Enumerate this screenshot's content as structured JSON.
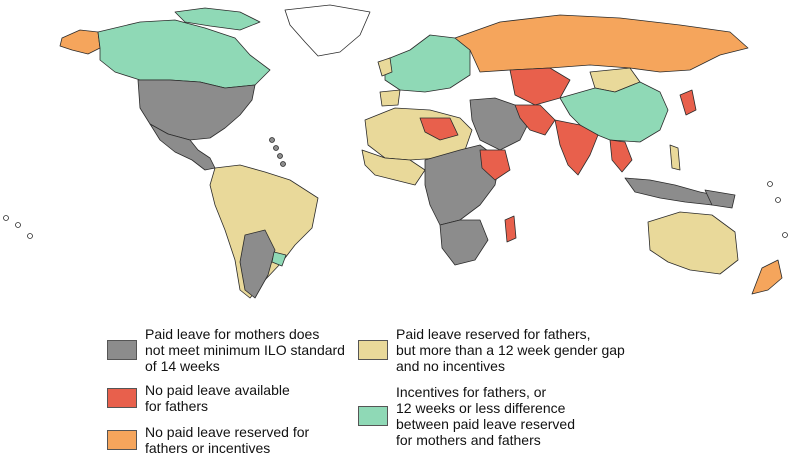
{
  "colors": {
    "gray": "#8c8c8c",
    "red": "#e8604c",
    "orange": "#f5a55c",
    "beige": "#e9d99a",
    "teal": "#8fd9b6",
    "white": "#ffffff",
    "border": "#2b2b2b"
  },
  "legend": [
    {
      "key": "gray",
      "lines": [
        "Paid leave for mothers does",
        "not meet minimum ILO standard",
        "of 14 weeks"
      ]
    },
    {
      "key": "red",
      "lines": [
        "No paid leave available",
        "for fathers"
      ]
    },
    {
      "key": "orange",
      "lines": [
        "No paid leave reserved for",
        "fathers or incentives"
      ]
    },
    {
      "key": "beige",
      "lines": [
        "Paid leave reserved for fathers,",
        "but more than a 12 week gender gap",
        "and no incentives"
      ]
    },
    {
      "key": "teal",
      "lines": [
        "Incentives for fathers, or",
        "12 weeks or less difference",
        "between paid leave reserved",
        "for mothers and fathers"
      ]
    }
  ]
}
